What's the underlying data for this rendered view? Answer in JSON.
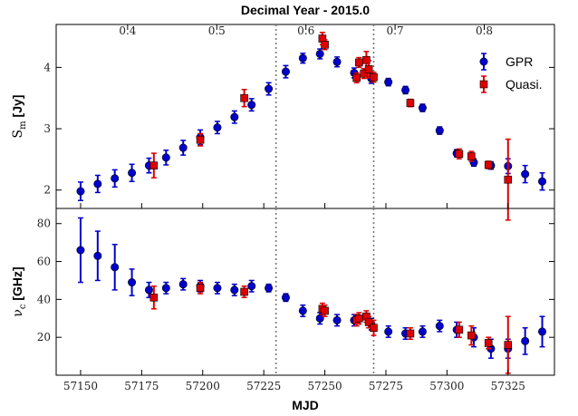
{
  "chart_data": {
    "type": "scatter",
    "top_axis_label": "Decimal Year - 2015.0",
    "top_ticks": [
      {
        "mjd": 57169.25,
        "label": "0.4"
      },
      {
        "mjd": 57205.75,
        "label": "0.5"
      },
      {
        "mjd": 57242.25,
        "label": "0.6"
      },
      {
        "mjd": 57278.75,
        "label": "0.7"
      },
      {
        "mjd": 57315.25,
        "label": "0.8"
      }
    ],
    "xlabel": "MJD",
    "x_ticks": [
      57150,
      57175,
      57200,
      57225,
      57250,
      57275,
      57300,
      57325
    ],
    "xlim": [
      57140,
      57344
    ],
    "vlines": [
      57230,
      57270
    ],
    "legend": {
      "position": "top-right",
      "entries": [
        {
          "name": "GPR",
          "color": "#0000cc",
          "marker": "circle"
        },
        {
          "name": "Quasi.",
          "color": "#dd0000",
          "marker": "square"
        }
      ]
    },
    "panels": [
      {
        "id": "top",
        "ylabel_main": "S",
        "ylabel_sub": "m",
        "ylabel_unit": " [Jy]",
        "ylim": [
          1.7,
          4.7
        ],
        "y_ticks": [
          2,
          3,
          4
        ],
        "series": [
          {
            "name": "GPR",
            "color": "#0000cc",
            "marker": "circle",
            "points": [
              [
                57150,
                1.98,
                0.15
              ],
              [
                57157,
                2.1,
                0.14
              ],
              [
                57164,
                2.19,
                0.14
              ],
              [
                57171,
                2.28,
                0.14
              ],
              [
                57178,
                2.4,
                0.12
              ],
              [
                57185,
                2.53,
                0.12
              ],
              [
                57192,
                2.69,
                0.12
              ],
              [
                57199,
                2.86,
                0.12
              ],
              [
                57206,
                3.02,
                0.1
              ],
              [
                57213,
                3.19,
                0.1
              ],
              [
                57220,
                3.39,
                0.1
              ],
              [
                57227,
                3.65,
                0.1
              ],
              [
                57234,
                3.93,
                0.1
              ],
              [
                57241,
                4.15,
                0.08
              ],
              [
                57248,
                4.22,
                0.08
              ],
              [
                57255,
                4.09,
                0.08
              ],
              [
                57262,
                3.91,
                0.08
              ],
              [
                57269,
                3.82,
                0.08
              ],
              [
                57276,
                3.76,
                0.06
              ],
              [
                57283,
                3.63,
                0.06
              ],
              [
                57290,
                3.34,
                0.06
              ],
              [
                57297,
                2.97,
                0.06
              ],
              [
                57304,
                2.6,
                0.06
              ],
              [
                57311,
                2.45,
                0.06
              ],
              [
                57318,
                2.4,
                0.06
              ],
              [
                57325,
                2.39,
                0.12
              ],
              [
                57332,
                2.26,
                0.14
              ],
              [
                57339,
                2.14,
                0.14
              ]
            ]
          },
          {
            "name": "Quasi.",
            "color": "#dd0000",
            "marker": "square",
            "points": [
              [
                57180,
                2.4,
                0.2
              ],
              [
                57199,
                2.82,
                0.1
              ],
              [
                57217,
                3.5,
                0.14
              ],
              [
                57249,
                4.47,
                0.1
              ],
              [
                57250,
                4.37,
                0.08
              ],
              [
                57263,
                3.83,
                0.08
              ],
              [
                57264,
                4.08,
                0.08
              ],
              [
                57266,
                3.9,
                0.08
              ],
              [
                57267,
                4.12,
                0.14
              ],
              [
                57268,
                3.97,
                0.14
              ],
              [
                57270,
                3.84,
                0.08
              ],
              [
                57285,
                3.42,
                0.06
              ],
              [
                57305,
                2.59,
                0.08
              ],
              [
                57310,
                2.55,
                0.08
              ],
              [
                57317,
                2.41,
                0.06
              ],
              [
                57325,
                2.17,
                0.66
              ]
            ]
          }
        ]
      },
      {
        "id": "bottom",
        "ylabel_main": "ν",
        "ylabel_sub": "c",
        "ylabel_unit": " [GHz]",
        "ylim": [
          0,
          88
        ],
        "y_ticks": [
          20,
          40,
          60,
          80
        ],
        "series": [
          {
            "name": "GPR",
            "color": "#0000cc",
            "marker": "circle",
            "points": [
              [
                57150,
                66,
                17
              ],
              [
                57157,
                63,
                13
              ],
              [
                57164,
                57,
                12
              ],
              [
                57171,
                49,
                7
              ],
              [
                57178,
                45,
                4
              ],
              [
                57185,
                46,
                3
              ],
              [
                57192,
                48,
                3
              ],
              [
                57199,
                47,
                3
              ],
              [
                57206,
                46,
                3
              ],
              [
                57213,
                45,
                3
              ],
              [
                57220,
                47,
                3
              ],
              [
                57227,
                46,
                2
              ],
              [
                57234,
                41,
                2
              ],
              [
                57241,
                34,
                3
              ],
              [
                57248,
                30,
                3
              ],
              [
                57255,
                29,
                3
              ],
              [
                57262,
                29,
                3
              ],
              [
                57269,
                27,
                3
              ],
              [
                57276,
                23,
                3
              ],
              [
                57283,
                22,
                3
              ],
              [
                57290,
                23,
                3
              ],
              [
                57297,
                26,
                3
              ],
              [
                57304,
                24,
                4
              ],
              [
                57311,
                20,
                5
              ],
              [
                57318,
                14,
                5
              ],
              [
                57325,
                14,
                5
              ],
              [
                57332,
                18,
                7
              ],
              [
                57339,
                23,
                8
              ]
            ]
          },
          {
            "name": "Quasi.",
            "color": "#dd0000",
            "marker": "square",
            "points": [
              [
                57180,
                41,
                6
              ],
              [
                57199,
                46,
                3
              ],
              [
                57217,
                44,
                3
              ],
              [
                57249,
                35,
                3
              ],
              [
                57250,
                34,
                3
              ],
              [
                57263,
                29,
                3
              ],
              [
                57264,
                30,
                3
              ],
              [
                57267,
                31,
                3
              ],
              [
                57268,
                28,
                3
              ],
              [
                57270,
                25,
                4
              ],
              [
                57285,
                22,
                3
              ],
              [
                57305,
                24,
                4
              ],
              [
                57310,
                21,
                5
              ],
              [
                57317,
                17,
                3
              ],
              [
                57325,
                16,
                15
              ]
            ]
          }
        ]
      }
    ]
  }
}
